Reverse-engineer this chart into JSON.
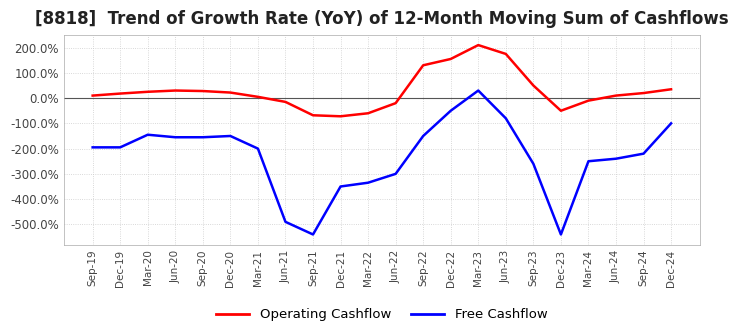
{
  "title": "[8818]  Trend of Growth Rate (YoY) of 12-Month Moving Sum of Cashflows",
  "title_fontsize": 12,
  "ylim": [
    -580,
    250
  ],
  "yticks": [
    200,
    100,
    0,
    -100,
    -200,
    -300,
    -400,
    -500
  ],
  "ytick_labels": [
    "200.0%",
    "100.0%",
    "0.0%",
    "-100.0%",
    "-200.0%",
    "-300.0%",
    "-400.0%",
    "-500.0%"
  ],
  "background_color": "#ffffff",
  "plot_bg_color": "#ffffff",
  "grid_color": "#cccccc",
  "legend_labels": [
    "Operating Cashflow",
    "Free Cashflow"
  ],
  "legend_colors": [
    "#ff0000",
    "#0000ff"
  ],
  "x_labels": [
    "Sep-19",
    "Dec-19",
    "Mar-20",
    "Jun-20",
    "Sep-20",
    "Dec-20",
    "Mar-21",
    "Jun-21",
    "Sep-21",
    "Dec-21",
    "Mar-22",
    "Jun-22",
    "Sep-22",
    "Dec-22",
    "Mar-23",
    "Jun-23",
    "Sep-23",
    "Dec-23",
    "Mar-24",
    "Jun-24",
    "Sep-24",
    "Dec-24"
  ],
  "operating_cashflow": [
    10,
    18,
    25,
    30,
    28,
    22,
    5,
    -15,
    -68,
    -72,
    -60,
    -20,
    130,
    155,
    210,
    175,
    50,
    -50,
    -10,
    10,
    20,
    35
  ],
  "free_cashflow": [
    -195,
    -195,
    -145,
    -155,
    -155,
    -150,
    -200,
    -490,
    -540,
    -350,
    -335,
    -300,
    -150,
    -50,
    30,
    -80,
    -260,
    -540,
    -250,
    -240,
    -220,
    -100
  ]
}
